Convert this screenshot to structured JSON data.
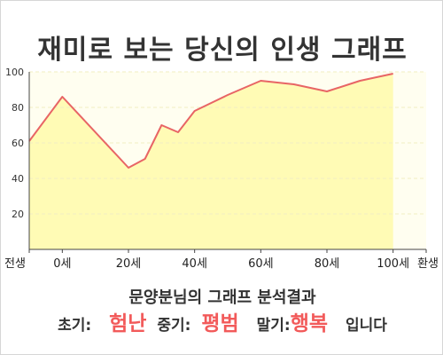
{
  "title": "재미로 보는 당신의 인생 그래프",
  "chart_data": {
    "type": "area",
    "x_labels": [
      "전생",
      "0세",
      "20세",
      "40세",
      "60세",
      "80세",
      "100세",
      "환생"
    ],
    "x_label_positions": [
      -10,
      0,
      20,
      40,
      60,
      80,
      100,
      110
    ],
    "x": [
      -10,
      0,
      20,
      25,
      30,
      35,
      40,
      50,
      60,
      70,
      80,
      90,
      100
    ],
    "values": [
      61,
      86,
      46,
      51,
      70,
      66,
      78,
      87,
      95,
      93,
      89,
      95,
      99
    ],
    "ylim": [
      0,
      100
    ],
    "yticks": [
      20,
      40,
      60,
      80,
      100
    ],
    "grid": true,
    "line_color": "#e86565",
    "fill_color": "#fffbb5",
    "plot_bg": "#fffef0"
  },
  "summary": {
    "heading": "문양분님의 그래프 분석결과",
    "early_label": "초기:",
    "early_value": "험난",
    "mid_label": "중기:",
    "mid_value": "평범",
    "late_label": "말기:",
    "late_value": "행복",
    "ending": "입니다"
  }
}
